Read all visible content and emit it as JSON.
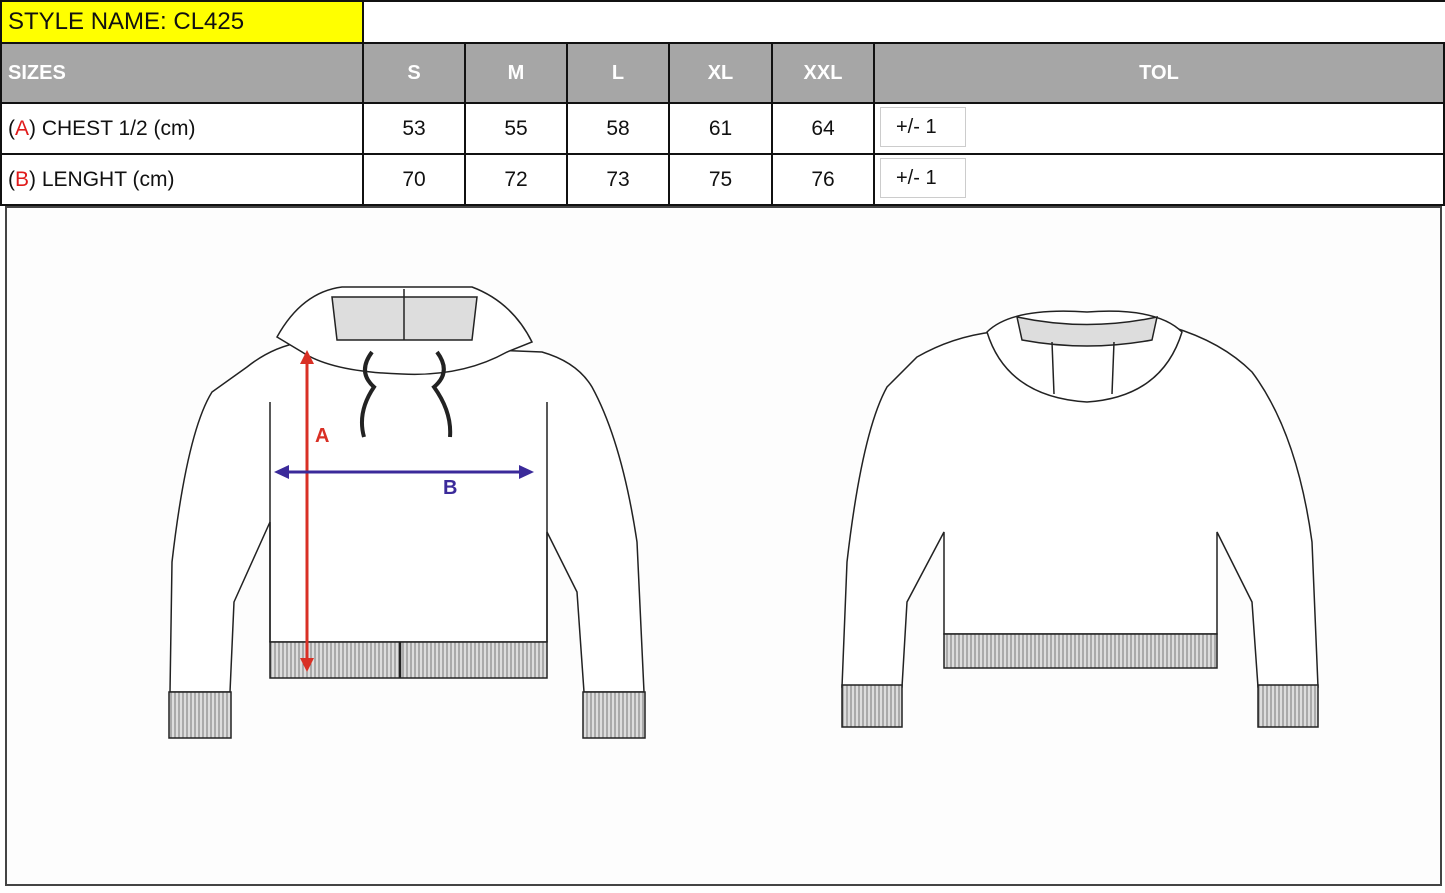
{
  "style_name": "STYLE NAME: CL425",
  "table": {
    "headers": [
      "SIZES",
      "S",
      "M",
      "L",
      "XL",
      "XXL",
      "TOL"
    ],
    "rows": [
      {
        "letter": "A",
        "label": ") CHEST 1/2 (cm)",
        "values": [
          "53",
          "55",
          "58",
          "61",
          "64"
        ],
        "tol": "+/- 1"
      },
      {
        "letter": "B",
        "label": ") LENGHT (cm)",
        "values": [
          "70",
          "72",
          "73",
          "75",
          "76"
        ],
        "tol": "+/- 1"
      }
    ]
  },
  "drawing": {
    "label_a": "A",
    "label_b": "B",
    "arrow_a_color": "#d93025",
    "arrow_b_color": "#3b2a9a"
  },
  "colors": {
    "title_bg": "#ffff00",
    "header_bg": "#a6a6a6",
    "letter": "#e01b1b"
  }
}
